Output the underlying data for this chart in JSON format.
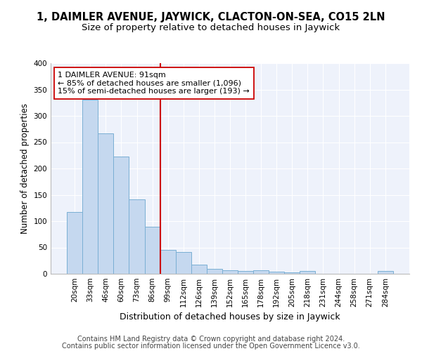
{
  "title": "1, DAIMLER AVENUE, JAYWICK, CLACTON-ON-SEA, CO15 2LN",
  "subtitle": "Size of property relative to detached houses in Jaywick",
  "xlabel": "Distribution of detached houses by size in Jaywick",
  "ylabel": "Number of detached properties",
  "categories": [
    "20sqm",
    "33sqm",
    "46sqm",
    "60sqm",
    "73sqm",
    "86sqm",
    "99sqm",
    "112sqm",
    "126sqm",
    "139sqm",
    "152sqm",
    "165sqm",
    "178sqm",
    "192sqm",
    "205sqm",
    "218sqm",
    "231sqm",
    "244sqm",
    "258sqm",
    "271sqm",
    "284sqm"
  ],
  "values": [
    117,
    331,
    267,
    223,
    141,
    89,
    45,
    42,
    18,
    10,
    7,
    5,
    7,
    4,
    3,
    5,
    0,
    0,
    0,
    0,
    5
  ],
  "bar_color": "#c5d8ef",
  "bar_edge_color": "#7aafd4",
  "vline_index": 5.5,
  "vline_color": "#cc0000",
  "annotation_line1": "1 DAIMLER AVENUE: 91sqm",
  "annotation_line2": "← 85% of detached houses are smaller (1,096)",
  "annotation_line3": "15% of semi-detached houses are larger (193) →",
  "annotation_box_color": "white",
  "annotation_box_edge": "#cc0000",
  "ylim": [
    0,
    400
  ],
  "yticks": [
    0,
    50,
    100,
    150,
    200,
    250,
    300,
    350,
    400
  ],
  "background_color": "#eef2fb",
  "footer_line1": "Contains HM Land Registry data © Crown copyright and database right 2024.",
  "footer_line2": "Contains public sector information licensed under the Open Government Licence v3.0.",
  "title_fontsize": 10.5,
  "subtitle_fontsize": 9.5,
  "xlabel_fontsize": 9,
  "ylabel_fontsize": 8.5,
  "tick_fontsize": 7.5,
  "annotation_fontsize": 8,
  "footer_fontsize": 7
}
